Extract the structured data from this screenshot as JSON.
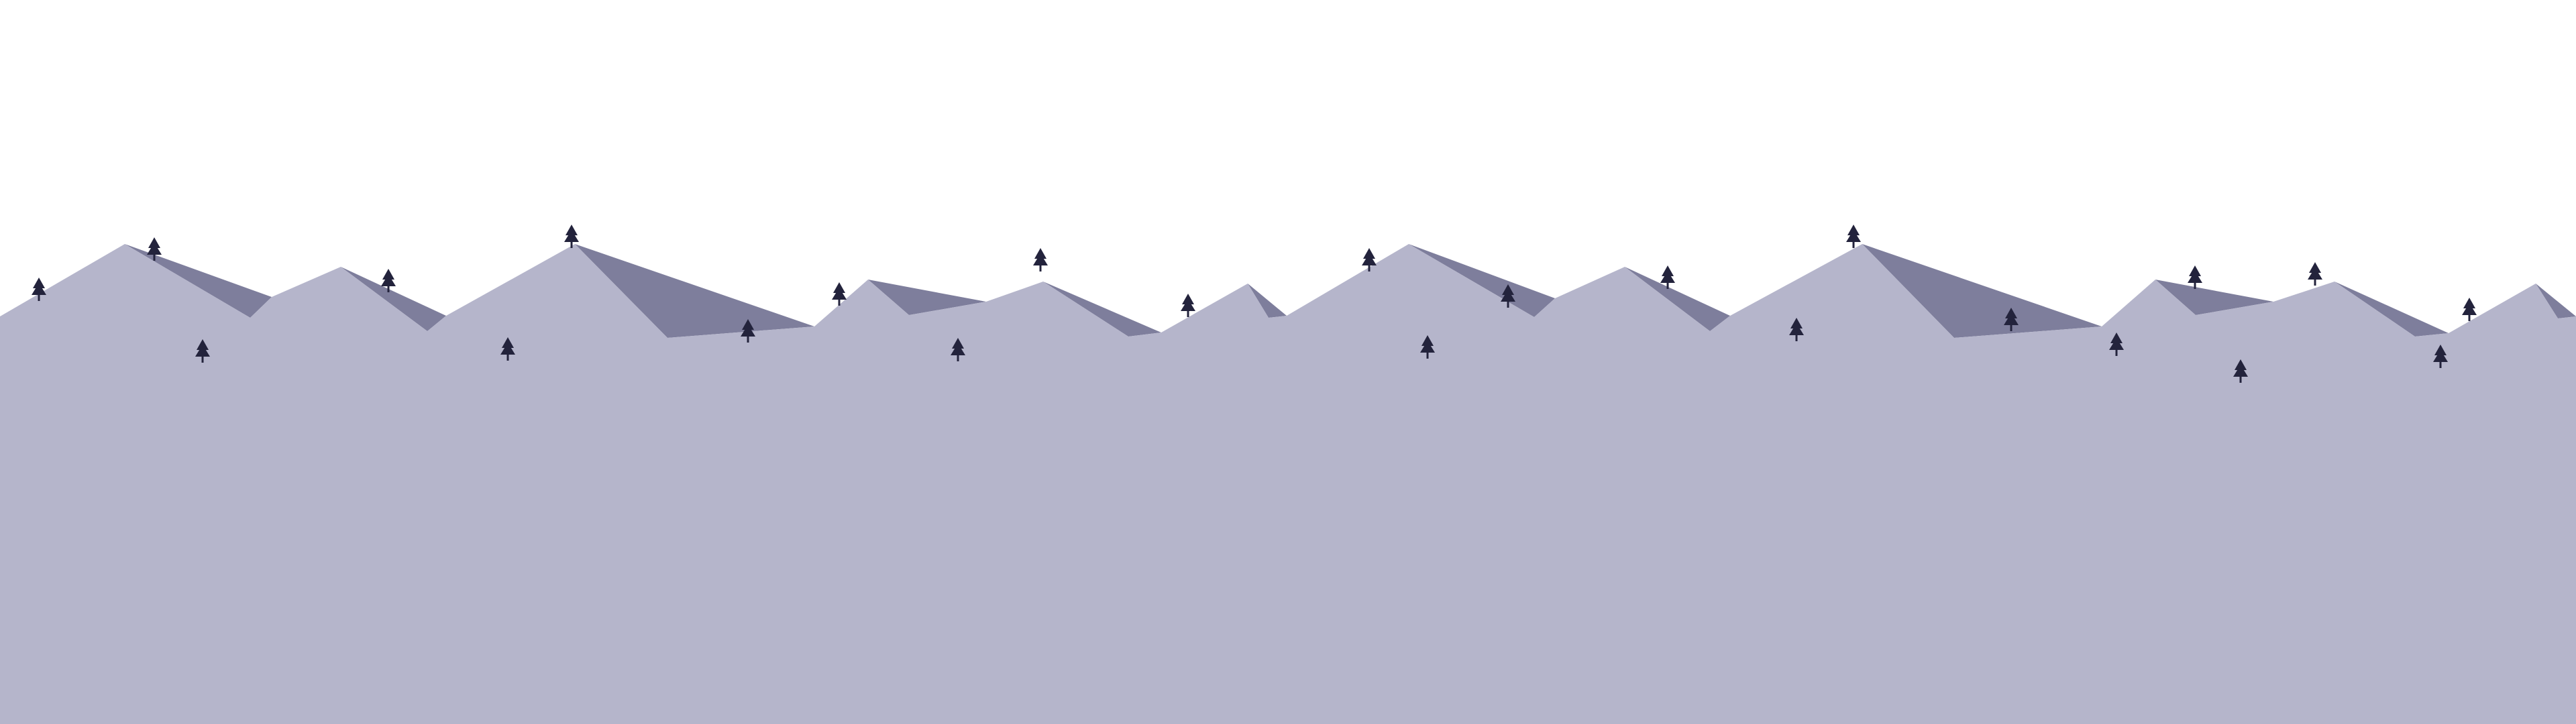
{
  "colors": {
    "sky": "#ffffff",
    "mountain": "#b5b5cb",
    "shadow": "#7e7e9c",
    "tree": "#23233c"
  },
  "scene": {
    "description_icon": "mountain-range-icon",
    "tree_icon": "pine-tree-icon"
  }
}
